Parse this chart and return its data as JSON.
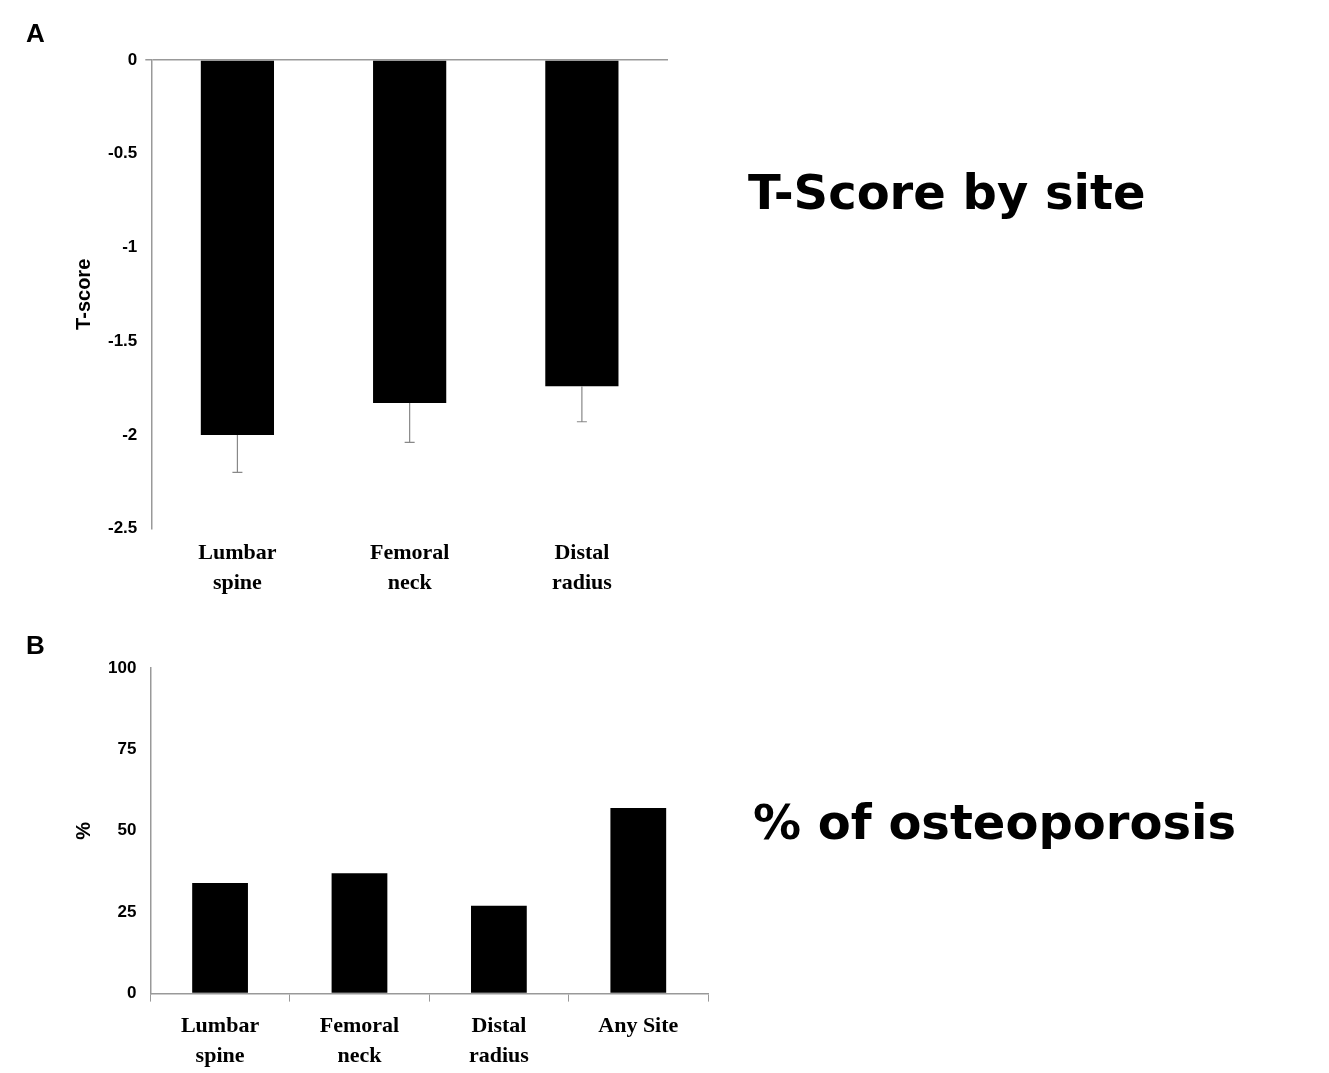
{
  "chart_data": [
    {
      "type": "bar",
      "annotations": [
        "A",
        "T-Score by site"
      ],
      "ylabel": "T-score",
      "categories": [
        "Lumbar\nspine",
        "Femoral\nneck",
        "Distal\nradius"
      ],
      "values": [
        -2.0,
        -1.83,
        -1.74
      ],
      "errors": [
        [
          -2.2,
          -2.0
        ],
        [
          -2.04,
          -1.83
        ],
        [
          -1.93,
          -1.74
        ]
      ],
      "color": "#000000",
      "ylim": [
        -2.5,
        0
      ],
      "yticks": [
        -2.5,
        -2,
        -1.5,
        -1,
        -0.5,
        0
      ],
      "grid": false,
      "legend": false
    },
    {
      "type": "bar",
      "annotations": [
        "B",
        "% of osteoporosis"
      ],
      "ylabel": "%",
      "categories": [
        "Lumbar\nspine",
        "Femoral\nneck",
        "Distal\nradius",
        "Any Site"
      ],
      "values": [
        34,
        37,
        27,
        57
      ],
      "color": "#000000",
      "ylim": [
        0,
        100
      ],
      "yticks": [
        0,
        25,
        50,
        75,
        100
      ],
      "grid": false,
      "legend": false
    }
  ]
}
